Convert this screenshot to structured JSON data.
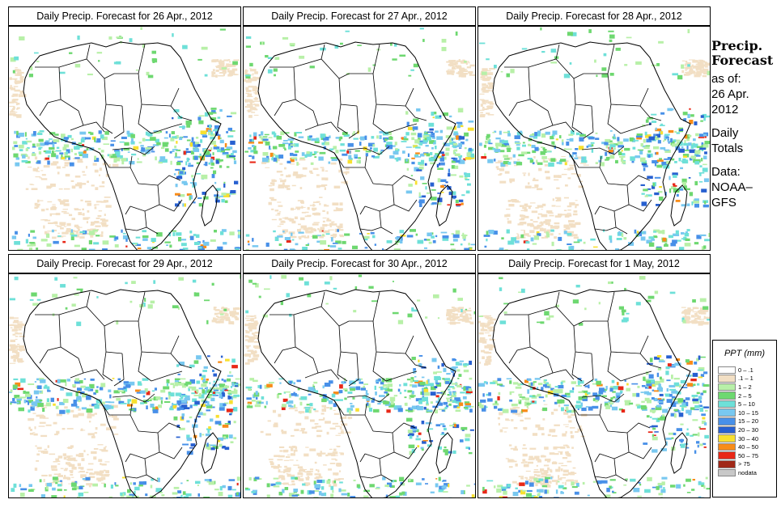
{
  "panels": [
    {
      "title": "Daily Precip. Forecast for  26 Apr., 2012"
    },
    {
      "title": "Daily Precip. Forecast for  27 Apr., 2012"
    },
    {
      "title": "Daily Precip. Forecast for  28 Apr., 2012"
    },
    {
      "title": "Daily Precip. Forecast for  29 Apr., 2012"
    },
    {
      "title": "Daily Precip. Forecast for  30 Apr., 2012"
    },
    {
      "title": "Daily Precip. Forecast for  1 May, 2012"
    }
  ],
  "side": {
    "heading1": "Precip.",
    "heading2": "Forecast",
    "asof": "as of:",
    "date1": "26 Apr.",
    "date2": "2012",
    "daily1": "Daily",
    "daily2": "Totals",
    "data1": "Data:",
    "data2": "NOAA–",
    "data3": "GFS"
  },
  "legend": {
    "title": "PPT (mm)",
    "items": [
      {
        "label": "0 – .1",
        "color": "#ffffff"
      },
      {
        "label": ".1 – 1",
        "color": "#f2dfc4"
      },
      {
        "label": "1 – 2",
        "color": "#b8f0a8"
      },
      {
        "label": "2 – 5",
        "color": "#6ed870"
      },
      {
        "label": "5 – 10",
        "color": "#6ee0d8"
      },
      {
        "label": "10 – 15",
        "color": "#78c8f0"
      },
      {
        "label": "15 – 20",
        "color": "#4890e8"
      },
      {
        "label": "20 – 30",
        "color": "#2860d0"
      },
      {
        "label": "30 – 40",
        "color": "#f8e030"
      },
      {
        "label": "40 – 50",
        "color": "#f88c18"
      },
      {
        "label": "50 – 75",
        "color": "#e82818"
      },
      {
        "label": "> 75",
        "color": "#a02818"
      },
      {
        "label": "nodata",
        "color": "#c8c8c8"
      }
    ]
  }
}
